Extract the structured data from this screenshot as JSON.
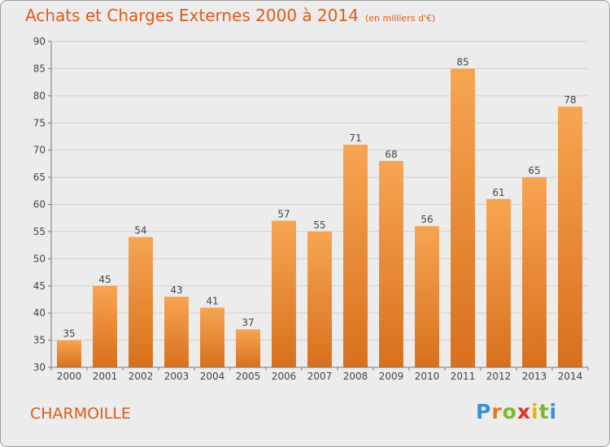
{
  "header": {
    "title": "Achats et Charges Externes 2000 à 2014",
    "unit": "(en milliers d'€)"
  },
  "footer": {
    "commune": "CHARMOILLE"
  },
  "brand": {
    "letters": [
      "P",
      "r",
      "o",
      "x",
      "i",
      "t",
      "i"
    ],
    "colors": [
      "#3a8fd8",
      "#e07b1f",
      "#7cb82f",
      "#e0312d",
      "#f0b400",
      "#7cb82f",
      "#3a8fd8"
    ]
  },
  "chart_data": {
    "type": "bar",
    "categories": [
      "2000",
      "2001",
      "2002",
      "2003",
      "2004",
      "2005",
      "2006",
      "2007",
      "2008",
      "2009",
      "2010",
      "2011",
      "2012",
      "2013",
      "2014"
    ],
    "values": [
      35,
      45,
      54,
      43,
      41,
      37,
      57,
      55,
      71,
      68,
      56,
      85,
      61,
      65,
      78
    ],
    "ylim": [
      30,
      90
    ],
    "yticks": [
      30,
      35,
      40,
      45,
      50,
      55,
      60,
      65,
      70,
      75,
      80,
      85,
      90
    ],
    "grid": true,
    "colors": {
      "bar_top": "#f7a553",
      "bar_bottom": "#d8701c",
      "grid": "#d0d0d0"
    }
  }
}
